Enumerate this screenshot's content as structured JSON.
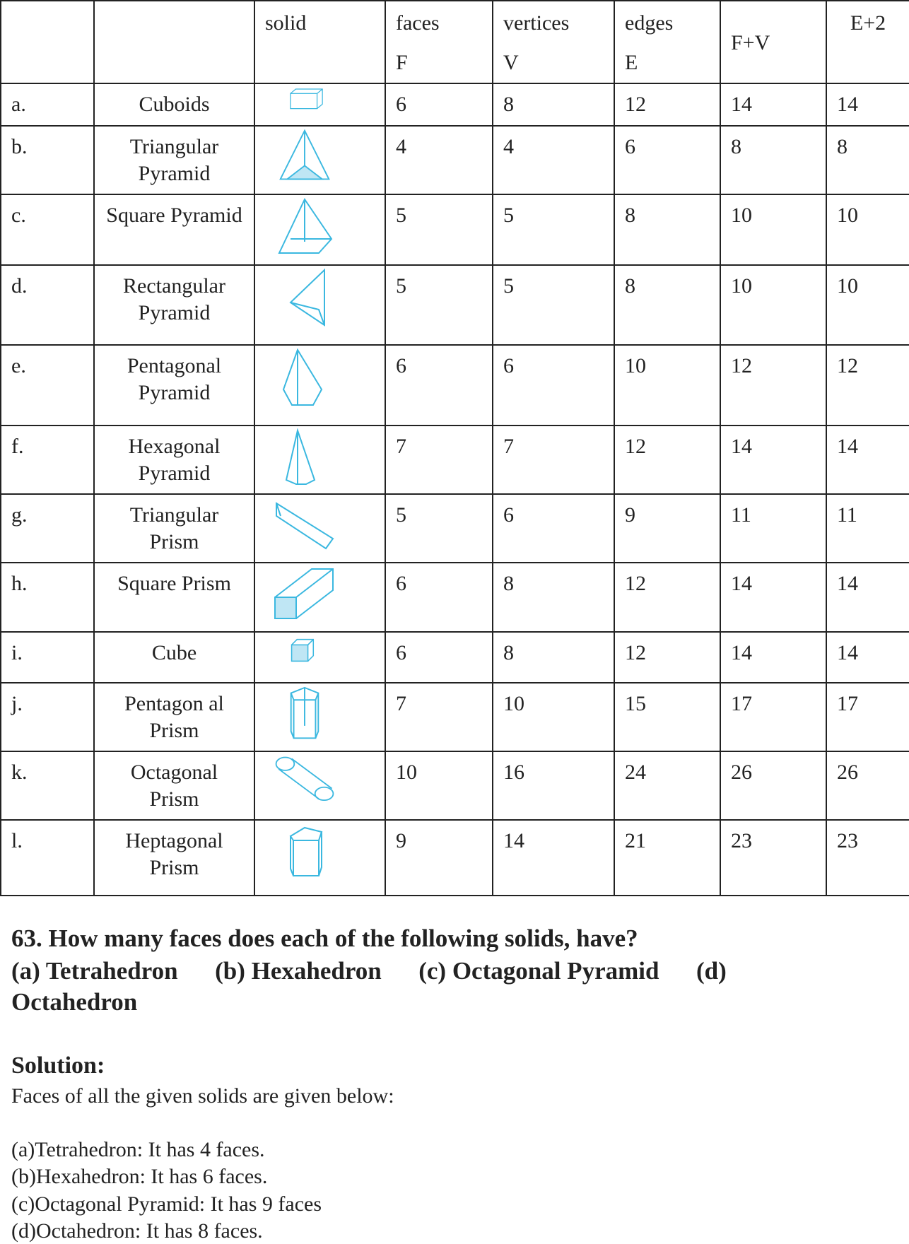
{
  "table": {
    "headers": {
      "solid": "solid",
      "faces": "faces",
      "faces_sub": "F",
      "vertices": "vertices",
      "vertices_sub": "V",
      "edges": "edges",
      "edges_sub": "E",
      "fv": "F+V",
      "e2": "E+2"
    },
    "rows": [
      {
        "label": "a.",
        "name": "Cuboids",
        "icon": "cuboid-icon",
        "F": "6",
        "V": "8",
        "E": "12",
        "FV": "14",
        "E2": "14"
      },
      {
        "label": "b.",
        "name": "Triangular Pyramid",
        "icon": "triangular-pyramid-icon",
        "F": "4",
        "V": "4",
        "E": "6",
        "FV": "8",
        "E2": "8"
      },
      {
        "label": "c.",
        "name": "Square Pyramid",
        "icon": "square-pyramid-icon",
        "F": "5",
        "V": "5",
        "E": "8",
        "FV": "10",
        "E2": "10"
      },
      {
        "label": "d.",
        "name": "Rectangular Pyramid",
        "icon": "rectangular-pyramid-icon",
        "F": "5",
        "V": "5",
        "E": "8",
        "FV": "10",
        "E2": "10"
      },
      {
        "label": "e.",
        "name": "Pentagonal Pyramid",
        "icon": "pentagonal-pyramid-icon",
        "F": "6",
        "V": "6",
        "E": "10",
        "FV": "12",
        "E2": "12"
      },
      {
        "label": "f.",
        "name": "Hexagonal Pyramid",
        "icon": "hexagonal-pyramid-icon",
        "F": "7",
        "V": "7",
        "E": "12",
        "FV": "14",
        "E2": "14"
      },
      {
        "label": "g.",
        "name": "Triangular Prism",
        "icon": "triangular-prism-icon",
        "F": "5",
        "V": "6",
        "E": "9",
        "FV": "11",
        "E2": "11"
      },
      {
        "label": "h.",
        "name": "Square Prism",
        "icon": "square-prism-icon",
        "F": "6",
        "V": "8",
        "E": "12",
        "FV": "14",
        "E2": "14"
      },
      {
        "label": "i.",
        "name": "Cube",
        "icon": "cube-icon",
        "F": "6",
        "V": "8",
        "E": "12",
        "FV": "14",
        "E2": "14"
      },
      {
        "label": "j.",
        "name": "Pentagon al Prism",
        "icon": "pentagonal-prism-icon",
        "F": "7",
        "V": "10",
        "E": "15",
        "FV": "17",
        "E2": "17"
      },
      {
        "label": "k.",
        "name": "Octagonal Prism",
        "icon": "octagonal-prism-icon",
        "F": "10",
        "V": "16",
        "E": "24",
        "FV": "26",
        "E2": "26"
      },
      {
        "label": "l.",
        "name": "Heptagonal Prism",
        "icon": "heptagonal-prism-icon",
        "F": "9",
        "V": "14",
        "E": "21",
        "FV": "23",
        "E2": "23"
      }
    ]
  },
  "question": {
    "line1": "63. How many faces does each of the following solids, have?",
    "line2": "(a) Tetrahedron      (b) Hexahedron      (c) Octagonal Pyramid      (d)",
    "line3": "Octahedron"
  },
  "solution": {
    "title": "Solution:",
    "intro": "Faces of all the given solids are given below:",
    "items": [
      "(a)Tetrahedron: It has 4 faces.",
      "(b)Hexahedron: It has 6 faces.",
      "(c)Octagonal Pyramid: It has 9 faces",
      "(d)Octahedron: It has 8 faces."
    ]
  },
  "colors": {
    "icon_stroke": "#3bb8e0",
    "icon_fill": "#bfe6f4"
  }
}
